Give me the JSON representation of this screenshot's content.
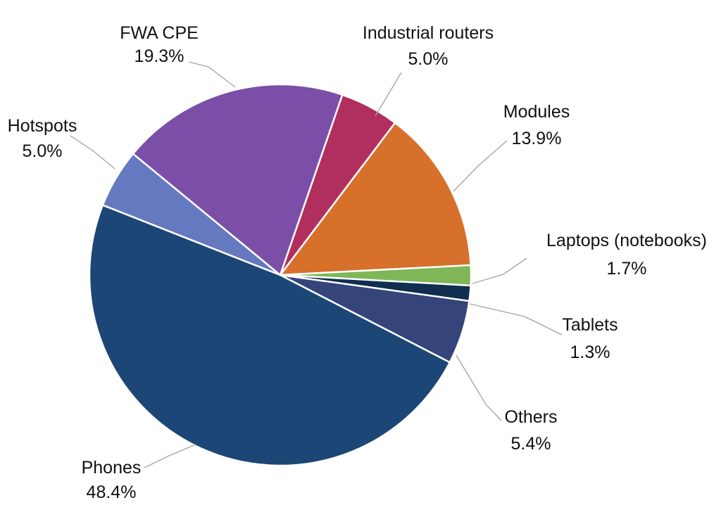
{
  "chart_data": {
    "type": "pie",
    "title": "",
    "slices": [
      {
        "name": "Industrial routers",
        "value": 5.0,
        "label": "5.0%",
        "color": "#b12f5e"
      },
      {
        "name": "Modules",
        "value": 13.9,
        "label": "13.9%",
        "color": "#d6702a"
      },
      {
        "name": "Laptops (notebooks)",
        "value": 1.7,
        "label": "1.7%",
        "color": "#7fb658"
      },
      {
        "name": "Tablets",
        "value": 1.3,
        "label": "1.3%",
        "color": "#0f2e50"
      },
      {
        "name": "Others",
        "value": 5.4,
        "label": "5.4%",
        "color": "#35457a"
      },
      {
        "name": "Phones",
        "value": 48.4,
        "label": "48.4%",
        "color": "#1c4675"
      },
      {
        "name": "Hotspots",
        "value": 5.0,
        "label": "5.0%",
        "color": "#6479bf"
      },
      {
        "name": "FWA CPE",
        "value": 19.3,
        "label": "19.3%",
        "color": "#7b4ea8"
      }
    ]
  }
}
